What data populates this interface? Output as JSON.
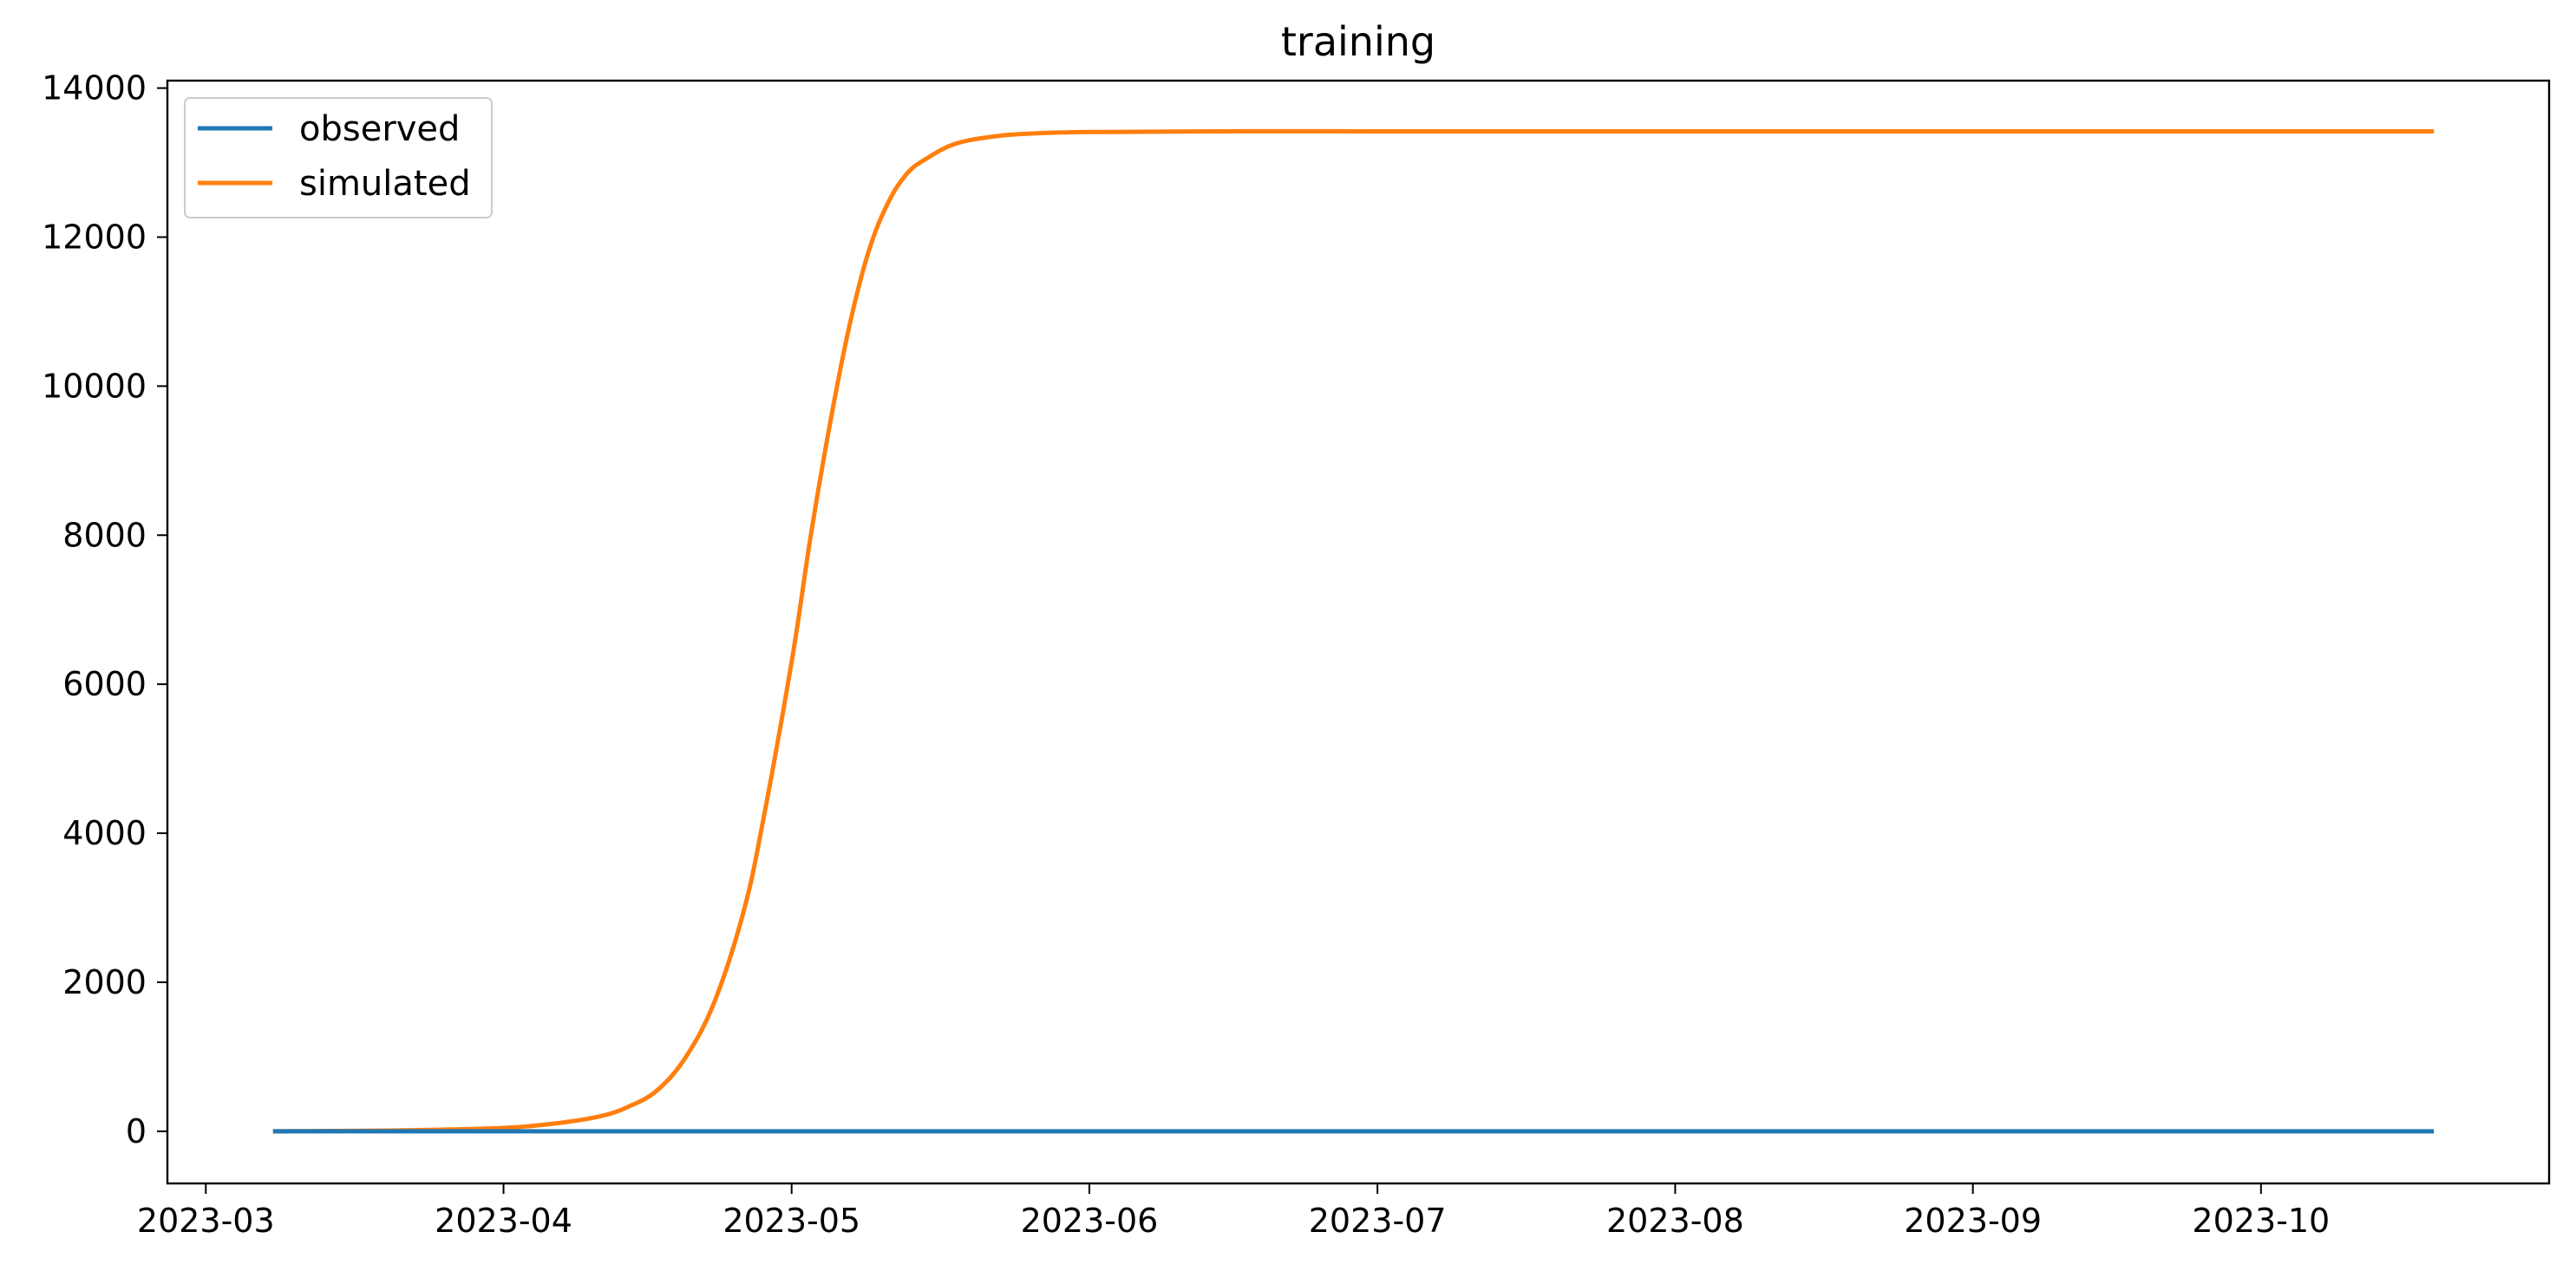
{
  "chart_data": {
    "type": "line",
    "title": "training",
    "xlabel": "",
    "ylabel": "",
    "x_range": [
      "2023-02-25",
      "2023-10-31"
    ],
    "ylim": [
      -700,
      14100
    ],
    "x_ticks": [
      "2023-03",
      "2023-04",
      "2023-05",
      "2023-06",
      "2023-07",
      "2023-08",
      "2023-09",
      "2023-10"
    ],
    "y_ticks": [
      0,
      2000,
      4000,
      6000,
      8000,
      10000,
      12000,
      14000
    ],
    "grid": false,
    "legend": {
      "position": "top-left",
      "entries": [
        "observed",
        "simulated"
      ]
    },
    "series": [
      {
        "name": "observed",
        "color": "#1f77b4",
        "x": [
          "2023-03-08",
          "2023-10-19"
        ],
        "y": [
          0,
          0
        ]
      },
      {
        "name": "simulated",
        "color": "#ff7f0e",
        "x": [
          "2023-03-08",
          "2023-03-20",
          "2023-03-31",
          "2023-04-06",
          "2023-04-11",
          "2023-04-14",
          "2023-04-17",
          "2023-04-20",
          "2023-04-23",
          "2023-04-26",
          "2023-04-28",
          "2023-05-01",
          "2023-05-03",
          "2023-05-05",
          "2023-05-07",
          "2023-05-09",
          "2023-05-11",
          "2023-05-13",
          "2023-05-15",
          "2023-05-18",
          "2023-05-22",
          "2023-05-26",
          "2023-06-01",
          "2023-06-15",
          "2023-07-01",
          "2023-10-19"
        ],
        "y": [
          0,
          10,
          40,
          100,
          200,
          330,
          550,
          1000,
          1750,
          2950,
          4150,
          6300,
          8000,
          9500,
          10800,
          11800,
          12450,
          12850,
          13050,
          13250,
          13350,
          13390,
          13410,
          13420,
          13420,
          13420
        ]
      }
    ]
  }
}
